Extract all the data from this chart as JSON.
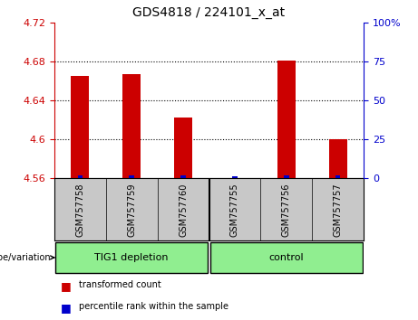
{
  "title": "GDS4818 / 224101_x_at",
  "samples": [
    "GSM757758",
    "GSM757759",
    "GSM757760",
    "GSM757755",
    "GSM757756",
    "GSM757757"
  ],
  "red_values": [
    4.665,
    4.667,
    4.622,
    4.56,
    4.681,
    4.6
  ],
  "blue_values_pct": [
    2,
    2,
    2,
    1,
    2,
    2
  ],
  "ylim_left": [
    4.56,
    4.72
  ],
  "ylim_right": [
    0,
    100
  ],
  "yticks_left": [
    4.56,
    4.6,
    4.64,
    4.68,
    4.72
  ],
  "yticks_right": [
    0,
    25,
    50,
    75,
    100
  ],
  "ytick_labels_right": [
    "0",
    "25",
    "50",
    "75",
    "100%"
  ],
  "red_color": "#cc0000",
  "blue_color": "#0000cc",
  "bg_color": "#c8c8c8",
  "group_color": "#90ee90",
  "group1_label": "TIG1 depletion",
  "group2_label": "control",
  "genotype_label": "genotype/variation",
  "legend_red": "transformed count",
  "legend_blue": "percentile rank within the sample"
}
